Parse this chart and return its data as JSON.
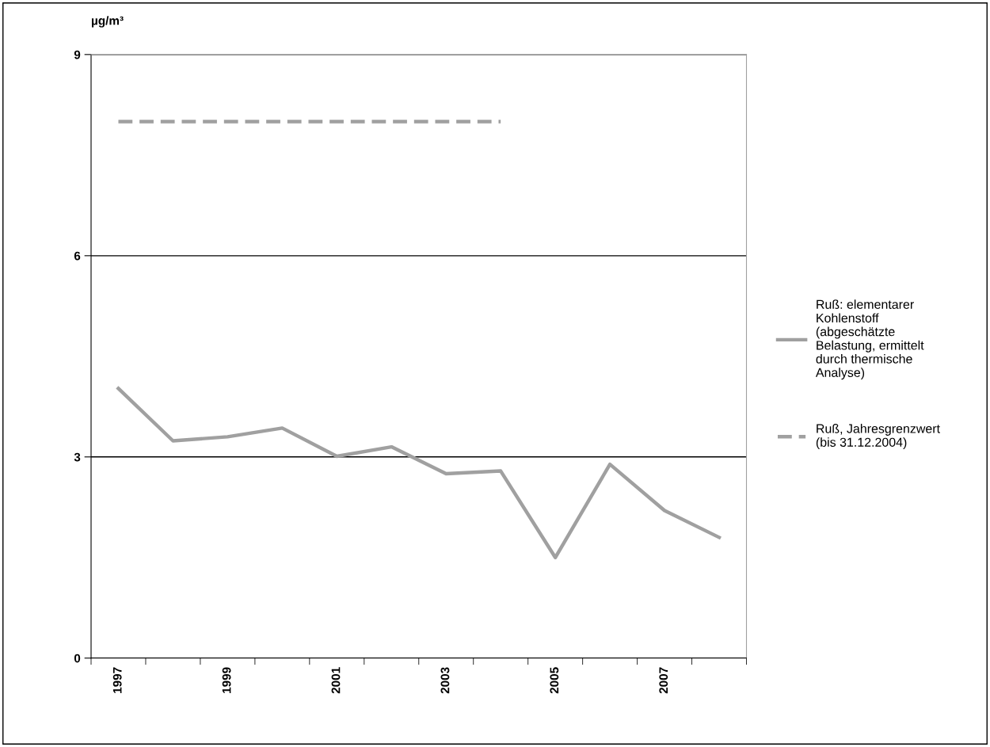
{
  "chart_data": {
    "type": "line",
    "ylabel": "µg/m³",
    "categories": [
      "1997",
      null,
      "1999",
      null,
      "2001",
      null,
      "2003",
      null,
      "2005",
      null,
      "2007",
      null
    ],
    "series": [
      {
        "name": "Ruß: elementarer\nKohlenstoff\n(abgeschätzte\nBelastung, ermittelt\ndurch thermische\nAnalyse)",
        "color": "#a0a0a0",
        "line_style": "solid",
        "values": [
          4.02,
          3.24,
          3.3,
          3.43,
          3.01,
          3.15,
          2.75,
          2.79,
          1.5,
          2.89,
          2.2,
          1.8
        ]
      },
      {
        "name": "Ruß, Jahresgrenzwert\n(bis 31.12.2004)",
        "color": "#a0a0a0",
        "line_style": "dashed",
        "values": [
          8,
          8,
          8,
          8,
          8,
          8,
          8,
          8,
          null,
          null,
          null,
          null
        ]
      }
    ],
    "ylim": [
      0,
      9
    ],
    "yticks": [
      0,
      3,
      6,
      9
    ],
    "grid": "y",
    "legend": "right",
    "marker": "none"
  }
}
